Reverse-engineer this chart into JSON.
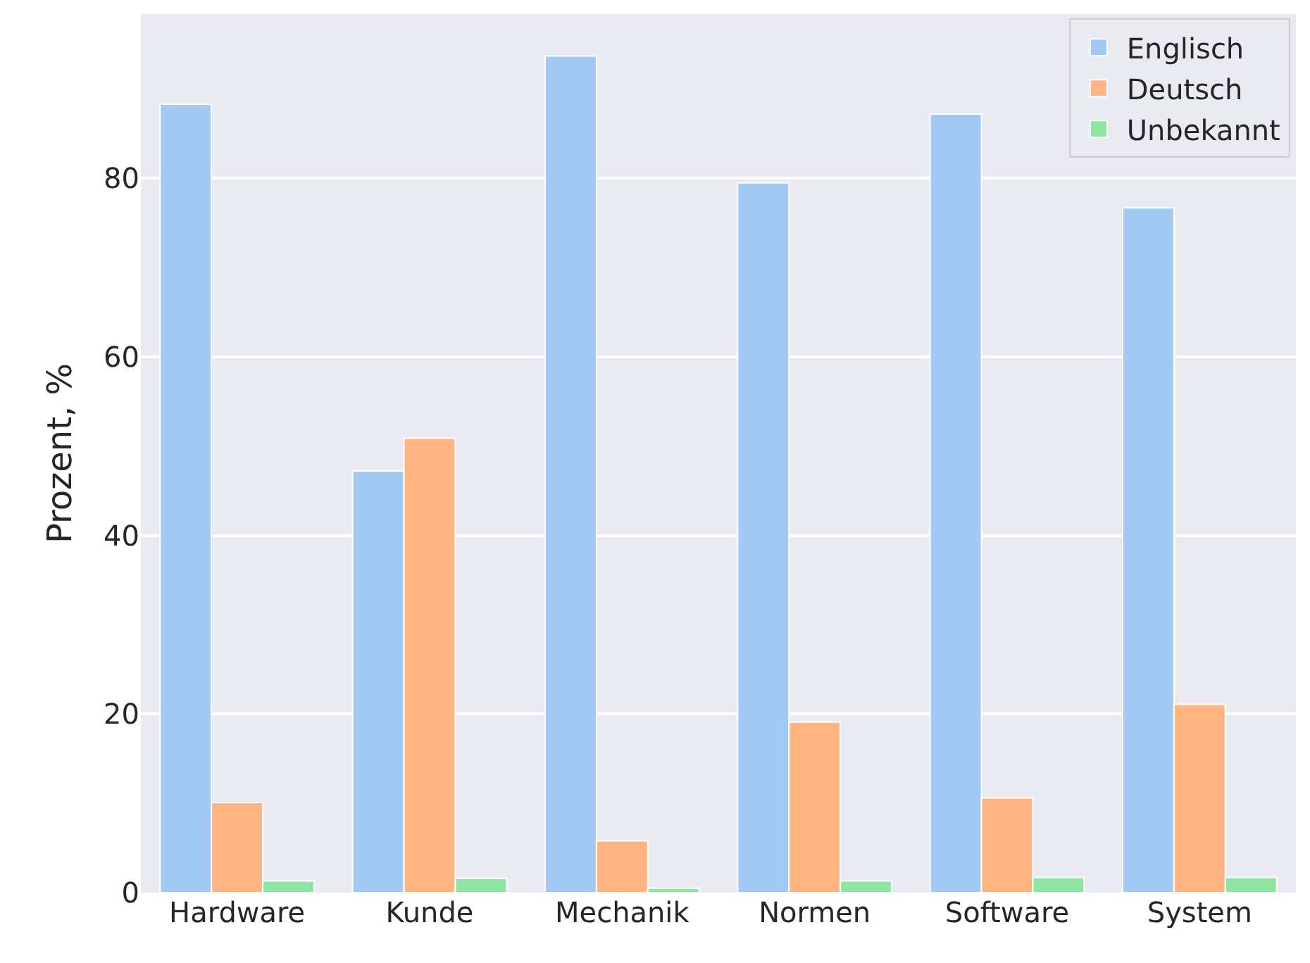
{
  "chart_data": {
    "type": "bar",
    "ylabel": "Prozent, %",
    "categories": [
      "Hardware",
      "Kunde",
      "Mechanik",
      "Normen",
      "Software",
      "System"
    ],
    "series": [
      {
        "name": "Englisch",
        "color": "#a1c9f4",
        "values": [
          88.3,
          47.2,
          93.7,
          79.5,
          87.2,
          76.7
        ]
      },
      {
        "name": "Deutsch",
        "color": "#ffb482",
        "values": [
          10.1,
          50.9,
          5.8,
          19.1,
          10.6,
          21.1
        ]
      },
      {
        "name": "Unbekannt",
        "color": "#8de5a1",
        "values": [
          1.3,
          1.6,
          0.5,
          1.3,
          1.7,
          1.7
        ]
      }
    ],
    "ylim": [
      0,
      98.4
    ],
    "yticks": [
      0,
      20,
      40,
      60,
      80
    ],
    "grid": "y",
    "legend": "top right"
  }
}
